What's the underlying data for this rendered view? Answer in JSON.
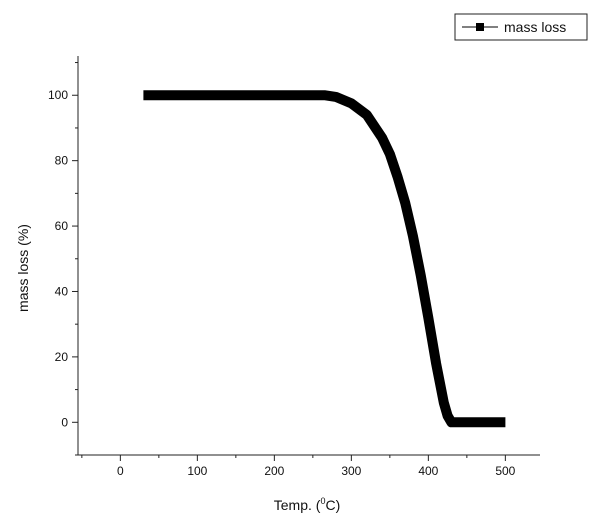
{
  "chart_data": {
    "type": "line",
    "title": "",
    "xlabel_prefix": "Temp. (",
    "xlabel_sup": "0",
    "xlabel_suffix": "C)",
    "ylabel": "mass loss (%)",
    "xlim": [
      -55,
      545
    ],
    "ylim": [
      -10,
      112
    ],
    "x_ticks": [
      0,
      100,
      200,
      300,
      400,
      500
    ],
    "y_ticks": [
      0,
      20,
      40,
      60,
      80,
      100
    ],
    "grid": false,
    "legend_position": "top-right",
    "series": [
      {
        "name": "mass loss",
        "color": "#000000",
        "marker": "square",
        "x": [
          30,
          100,
          200,
          265,
          280,
          300,
          320,
          340,
          350,
          360,
          370,
          380,
          390,
          400,
          410,
          420,
          425,
          430,
          432,
          440,
          460,
          480,
          500
        ],
        "y": [
          100,
          100,
          100,
          100,
          99.5,
          97.5,
          94,
          87,
          82,
          75,
          67,
          57,
          45,
          32,
          18,
          6,
          2,
          0,
          0,
          0,
          0,
          0,
          0
        ]
      }
    ]
  }
}
